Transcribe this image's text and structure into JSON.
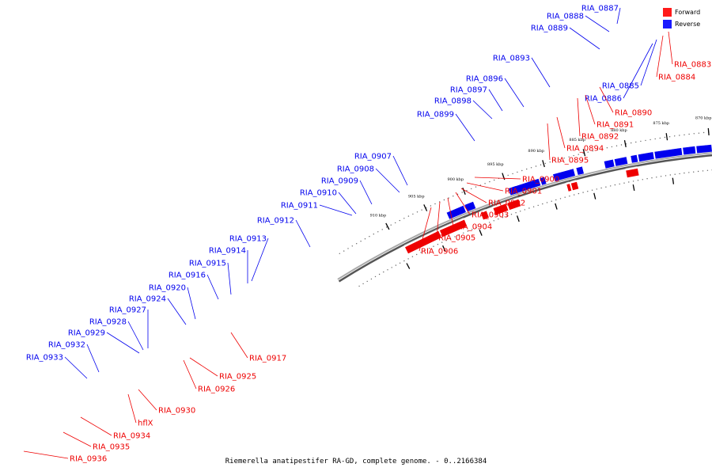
{
  "caption": "Riemerella anatipestifer RA-GD, complete genome. - 0..2166384",
  "legend": {
    "forward_label": "Forward",
    "reverse_label": "Reverse",
    "forward_color": "#ff1a1a",
    "reverse_color": "#1a1aff"
  },
  "colors": {
    "forward": "#ee0000",
    "reverse": "#0000ee",
    "backbone": "#555555"
  },
  "ticks": [
    "860 kbp",
    "865 kbp",
    "870 kbp",
    "875 kbp",
    "880 kbp",
    "885 kbp",
    "890 kbp",
    "895 kbp",
    "900 kbp",
    "905 kbp",
    "910 kbp"
  ],
  "reverse_genes": [
    "RIA_0886",
    "RIA_0885",
    "RIA_0887",
    "RIA_0888",
    "RIA_0889",
    "RIA_0893",
    "RIA_0896",
    "RIA_0897",
    "RIA_0898",
    "RIA_0899",
    "RIA_0907",
    "RIA_0908",
    "RIA_0909",
    "RIA_0910",
    "RIA_0911",
    "RIA_0912",
    "RIA_0913",
    "RIA_0914",
    "RIA_0915",
    "RIA_0916",
    "RIA_0920",
    "RIA_0924",
    "RIA_0927",
    "RIA_0928",
    "RIA_0929",
    "RIA_0932",
    "RIA_0933"
  ],
  "forward_genes": [
    "RIA_0883",
    "RIA_0884",
    "RIA_0890",
    "RIA_0891",
    "RIA_0892",
    "RIA_0894",
    "RIA_0895",
    "RIA_0900",
    "RIA_0901",
    "RIA_0902",
    "RIA_0903",
    "RIA_0904",
    "RIA_0905",
    "RIA_0906",
    "RIA_0917",
    "RIA_0925",
    "RIA_0926",
    "RIA_0930",
    "hflX",
    "RIA_0934",
    "RIA_0935",
    "RIA_0936"
  ]
}
